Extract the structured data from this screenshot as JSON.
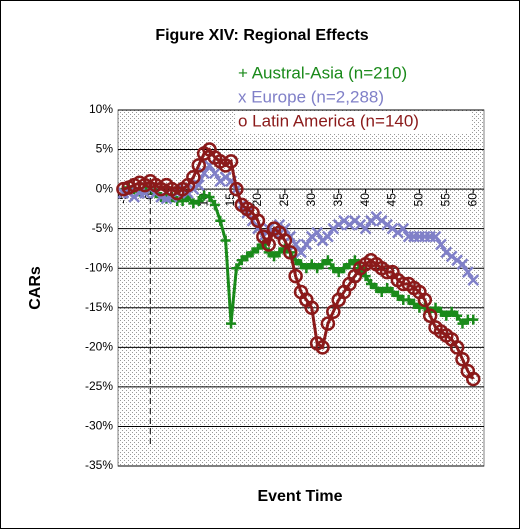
{
  "chart_data": {
    "type": "line",
    "title": "Figure XIV: Regional Effects",
    "x_label": "Event Time",
    "y_label": "CARs",
    "x": [
      -5,
      -4,
      -3,
      -2,
      -1,
      0,
      1,
      2,
      3,
      4,
      5,
      6,
      7,
      8,
      9,
      10,
      11,
      12,
      13,
      14,
      15,
      16,
      17,
      18,
      19,
      20,
      21,
      22,
      23,
      24,
      25,
      26,
      27,
      28,
      29,
      30,
      31,
      32,
      33,
      34,
      35,
      36,
      37,
      38,
      39,
      40,
      41,
      42,
      43,
      44,
      45,
      46,
      47,
      48,
      49,
      50,
      51,
      52,
      53,
      54,
      55,
      56,
      57,
      58,
      59,
      60
    ],
    "series": [
      {
        "name": "+ Austral-Asia (n=210)",
        "color": "#1a8a1a",
        "marker": "plus",
        "values": [
          0,
          0.2,
          0,
          -0.3,
          0,
          0.3,
          -0.5,
          -1,
          -1.2,
          -1,
          -1.5,
          -1.5,
          -1,
          -1.8,
          -1.5,
          -0.8,
          -1,
          -2,
          -4,
          -6.5,
          -17,
          -10,
          -9,
          -8.5,
          -8,
          -7.5,
          -7,
          -8,
          -8.5,
          -8,
          -7.5,
          -8,
          -9,
          -9.5,
          -10,
          -9.5,
          -10,
          -9.5,
          -9,
          -10,
          -10.5,
          -10,
          -9.5,
          -9,
          -10,
          -11,
          -12,
          -12.5,
          -13,
          -12.5,
          -13,
          -13.5,
          -14,
          -14,
          -14.5,
          -15,
          -15,
          -15.5,
          -15,
          -15.5,
          -16,
          -15.5,
          -16,
          -17,
          -16.5,
          -16.5
        ]
      },
      {
        "name": "x Europe (n=2,288)",
        "color": "#8080c8",
        "marker": "cross",
        "values": [
          -0.5,
          -0.5,
          -1,
          -0.5,
          -0.5,
          0,
          -0.5,
          -1,
          -1.2,
          -1,
          -0.5,
          0,
          -0.5,
          0,
          0.5,
          2,
          3,
          2,
          1,
          1.5,
          1,
          0,
          -2,
          -3,
          -4,
          -5,
          -6,
          -5,
          -5.5,
          -4.5,
          -5,
          -6,
          -7,
          -8,
          -7,
          -6,
          -5.5,
          -6.5,
          -6,
          -5,
          -4.5,
          -4,
          -4.5,
          -4,
          -4.5,
          -5,
          -4,
          -3.5,
          -4,
          -4.5,
          -5,
          -5.5,
          -5,
          -6,
          -6,
          -6,
          -6,
          -6,
          -6,
          -7,
          -8,
          -8.5,
          -9,
          -9.5,
          -10.5,
          -11.5
        ]
      },
      {
        "name": "o Latin America (n=140)",
        "color": "#8b1a1a",
        "marker": "circle",
        "values": [
          0,
          0.2,
          0.5,
          0.8,
          0.5,
          1,
          0.5,
          0,
          0.5,
          0,
          -0.5,
          0,
          0.5,
          1.5,
          3,
          4.5,
          5,
          4,
          3.5,
          3,
          3.5,
          0,
          -2,
          -2.5,
          -3,
          -4,
          -6,
          -7,
          -5,
          -5.5,
          -6.5,
          -8,
          -11,
          -13,
          -14,
          -15,
          -19.5,
          -20,
          -17,
          -15.5,
          -14,
          -13,
          -12,
          -11,
          -10,
          -9.5,
          -9,
          -9.5,
          -10,
          -10.5,
          -10.5,
          -11.5,
          -12,
          -12,
          -12.5,
          -13,
          -14,
          -16,
          -17.5,
          -18,
          -18.5,
          -19,
          -20,
          -21.5,
          -23,
          -24
        ]
      }
    ],
    "xlim": [
      -6,
      62
    ],
    "xticks": [
      -5,
      0,
      5,
      10,
      15,
      20,
      25,
      30,
      35,
      40,
      45,
      50,
      55,
      60
    ],
    "ylim": [
      -35,
      10
    ],
    "yticks": [
      {
        "value": 10,
        "label": "10%"
      },
      {
        "value": 5,
        "label": "5%"
      },
      {
        "value": 0,
        "label": "0%"
      },
      {
        "value": -5,
        "label": "-5%"
      },
      {
        "value": -10,
        "label": "-10%"
      },
      {
        "value": -15,
        "label": "-15%"
      },
      {
        "value": -20,
        "label": "-20%"
      },
      {
        "value": -25,
        "label": "-25%"
      },
      {
        "value": -30,
        "label": "-30%"
      },
      {
        "value": -35,
        "label": "-35%"
      }
    ],
    "grid": true
  }
}
